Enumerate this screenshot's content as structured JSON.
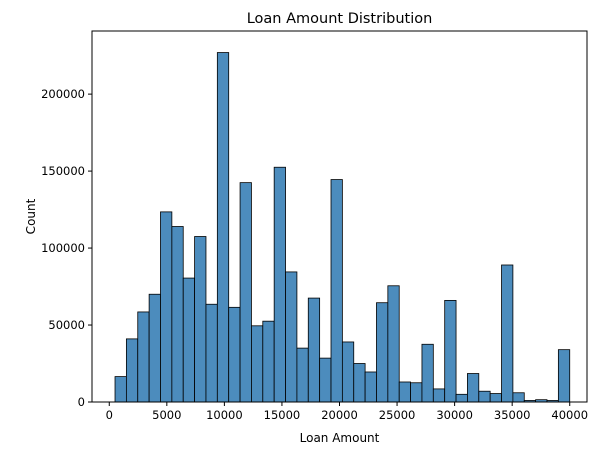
{
  "chart_data": {
    "type": "bar",
    "title": "Loan Amount Distribution",
    "xlabel": "Loan Amount",
    "ylabel": "Count",
    "xlim": [
      -1500,
      41500
    ],
    "ylim": [
      0,
      241000
    ],
    "xticks": [
      0,
      5000,
      10000,
      15000,
      20000,
      25000,
      30000,
      35000,
      40000
    ],
    "yticks": [
      0,
      50000,
      100000,
      150000,
      200000
    ],
    "bin_start": 500,
    "bin_width": 987.5,
    "values": [
      16500,
      41000,
      58500,
      70000,
      123500,
      114000,
      80500,
      107500,
      63500,
      227000,
      61500,
      142500,
      49500,
      52500,
      152500,
      84500,
      35000,
      67500,
      28500,
      144500,
      39000,
      25000,
      19500,
      64500,
      75500,
      13000,
      12500,
      37500,
      8500,
      66000,
      5000,
      18500,
      7000,
      5500,
      89000,
      6000,
      1000,
      1500,
      1000,
      34000
    ],
    "grid": false
  }
}
